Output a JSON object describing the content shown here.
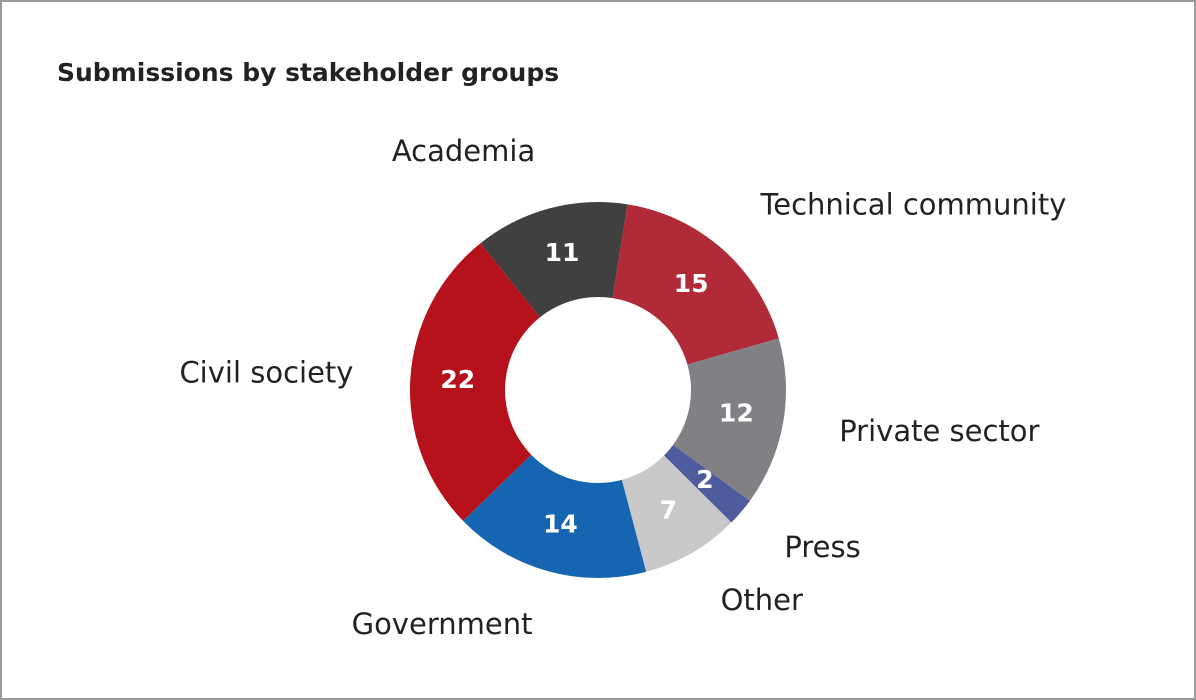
{
  "chart_data": {
    "type": "donut",
    "title": "Submissions by stakeholder groups",
    "categories": [
      "Academia",
      "Technical community",
      "Private sector",
      "Press",
      "Other",
      "Government",
      "Civil society"
    ],
    "values": [
      11,
      15,
      12,
      2,
      7,
      14,
      22
    ],
    "colors": [
      "#404040",
      "#b02a37",
      "#808085",
      "#4e5b9c",
      "#c8c8c8",
      "#1565b0",
      "#b5121b"
    ]
  }
}
